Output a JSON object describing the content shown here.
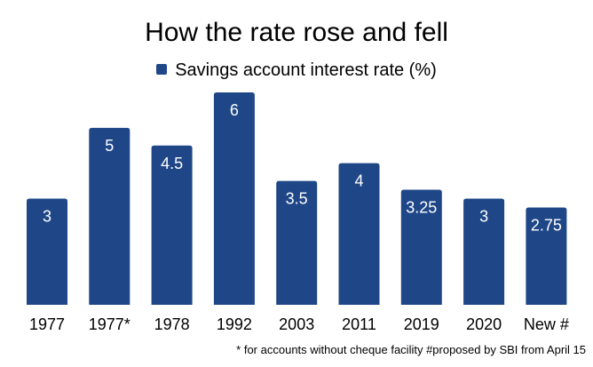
{
  "chart_data": {
    "type": "bar",
    "title": "How the rate rose and fell",
    "legend": [
      "Savings account interest rate (%)"
    ],
    "legend_position": "top",
    "categories": [
      "1977",
      "1977*",
      "1978",
      "1992",
      "2003",
      "2011",
      "2019",
      "2020",
      "New #"
    ],
    "series": [
      {
        "name": "Savings account interest rate (%)",
        "values": [
          3,
          5,
          4.5,
          6,
          3.5,
          4,
          3.25,
          3,
          2.75
        ],
        "color": "#1f4788"
      }
    ],
    "data_labels": [
      "3",
      "5",
      "4.5",
      "6",
      "3.5",
      "4",
      "3.25",
      "3",
      "2.75"
    ],
    "xlabel": "",
    "ylabel": "",
    "ylim": [
      0,
      6
    ],
    "grid": false,
    "footnote": "* for accounts without cheque facility #proposed by SBI from April 15"
  }
}
